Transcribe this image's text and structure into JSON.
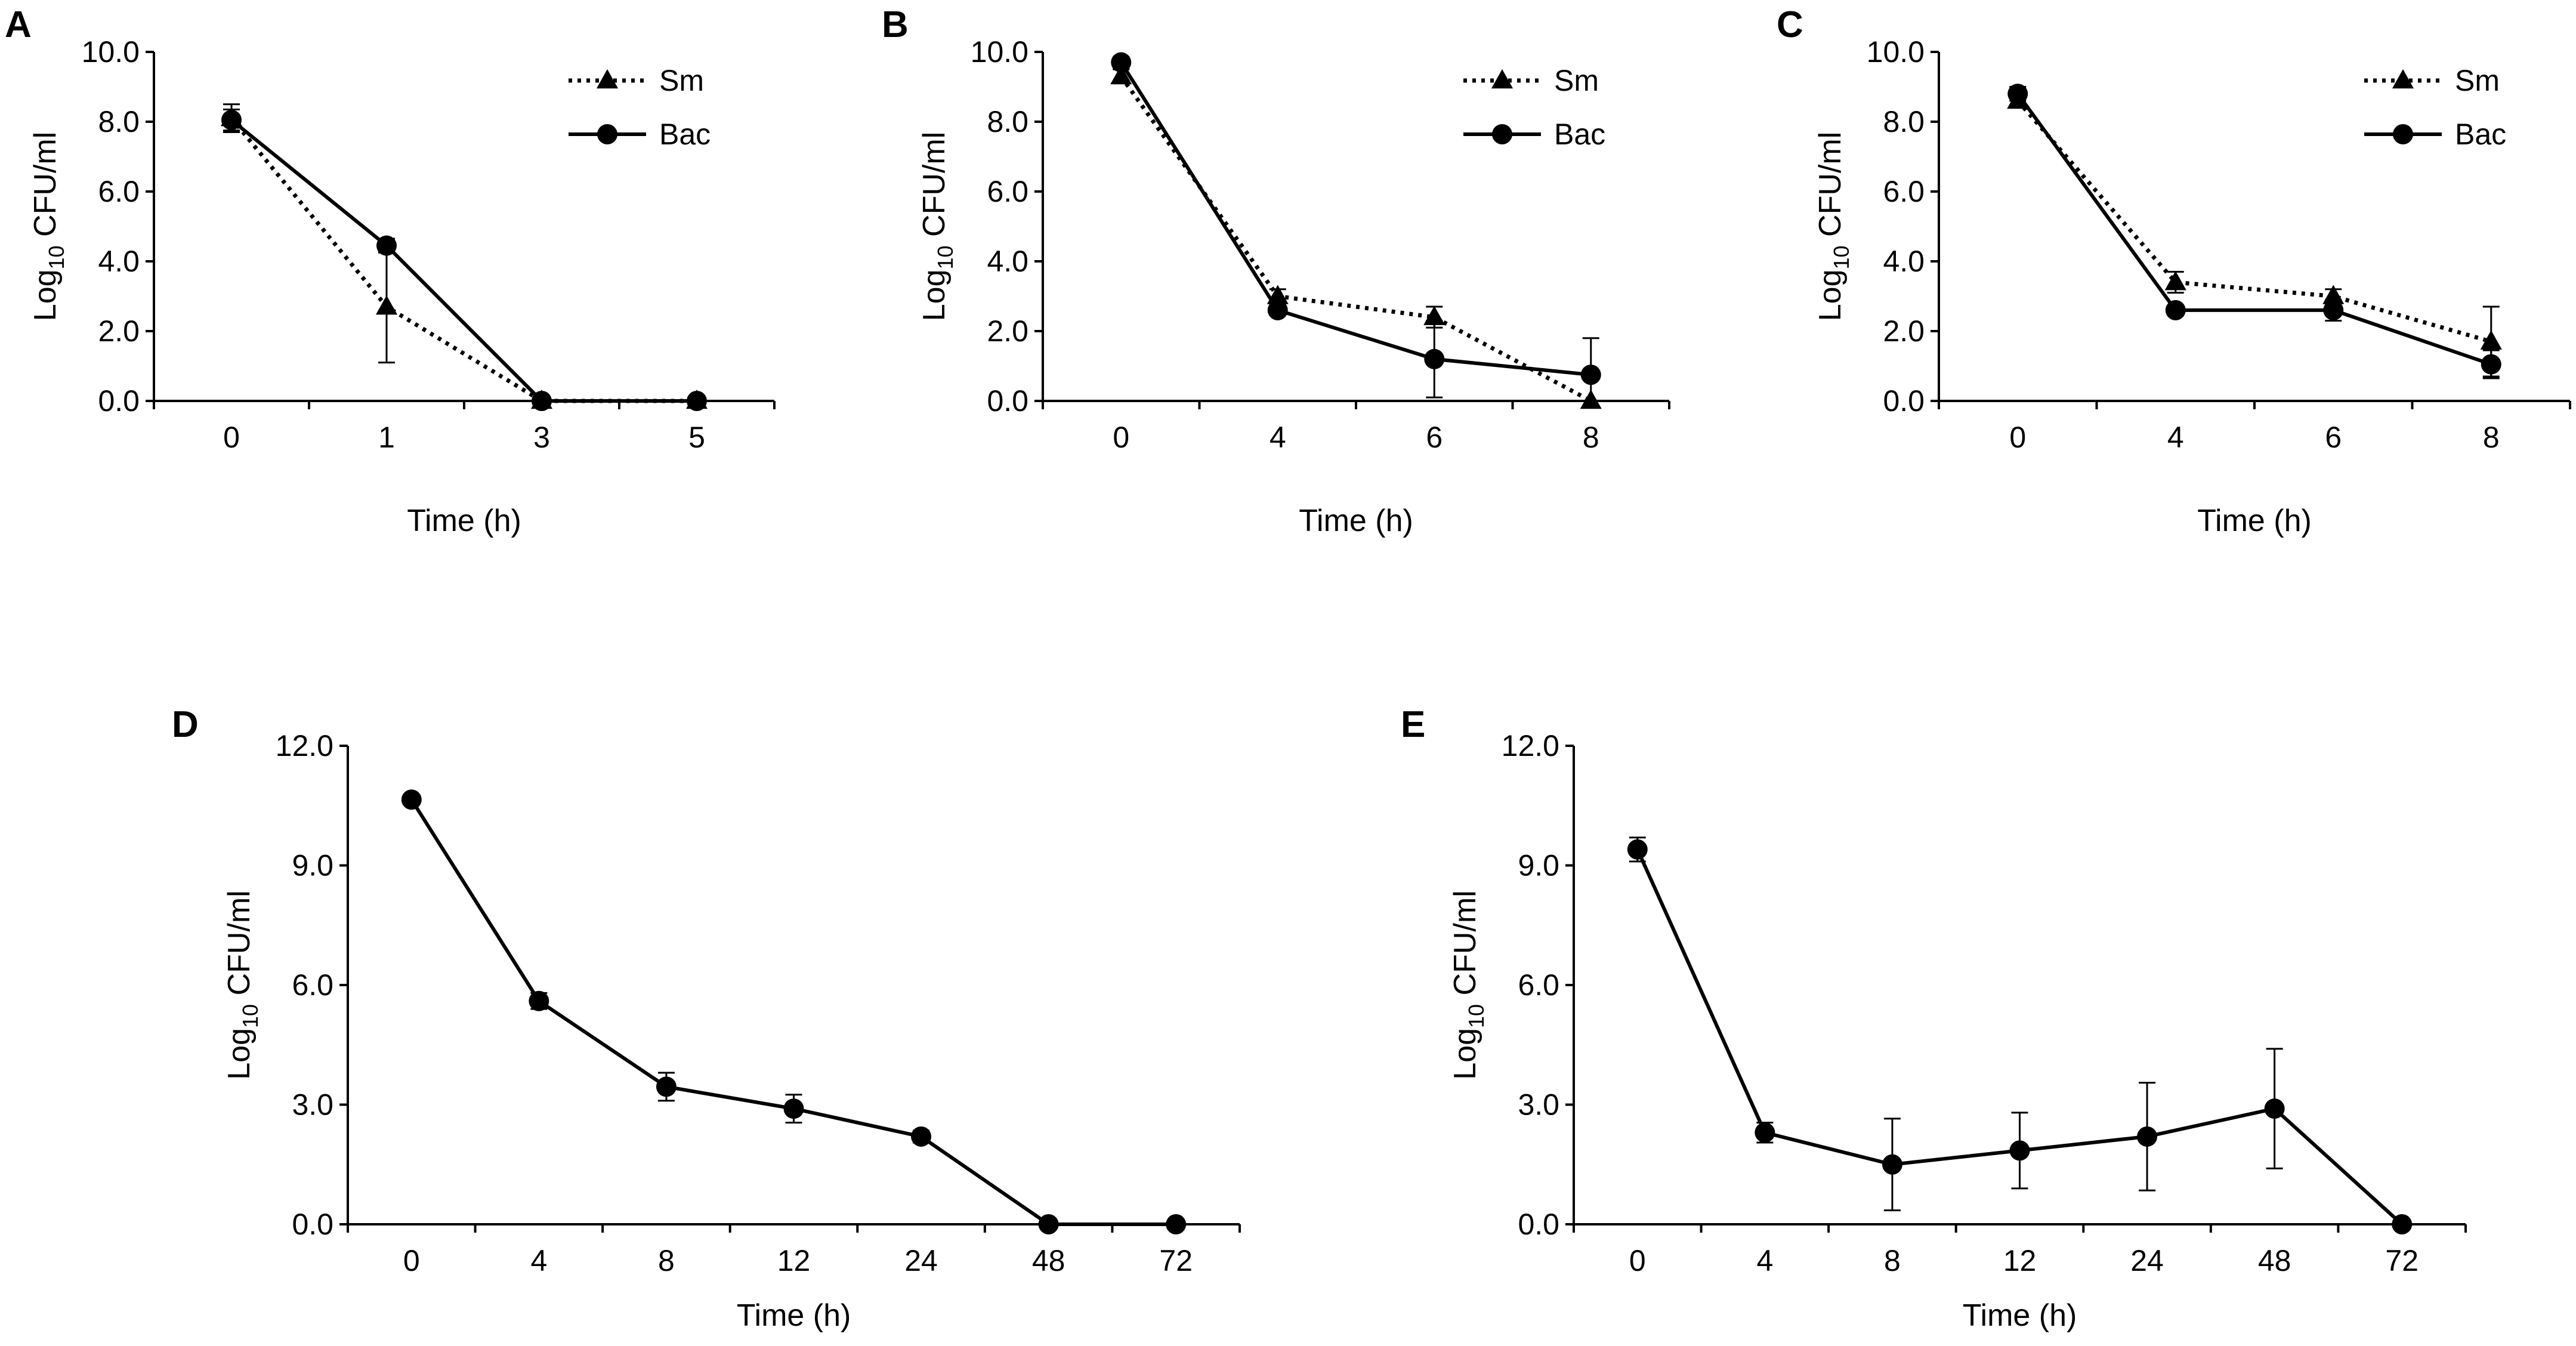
{
  "figure": {
    "panels": [
      "A",
      "B",
      "C",
      "D",
      "E"
    ]
  },
  "chart_data": [
    {
      "panel": "A",
      "type": "line",
      "xlabel": "Time (h)",
      "ylabel_main": "Log",
      "ylabel_sub": "10",
      "ylabel_rest": " CFU/ml",
      "categories": [
        "0",
        "1",
        "3",
        "5"
      ],
      "ylim": [
        0,
        10
      ],
      "yticks": [
        "0.0",
        "2.0",
        "4.0",
        "6.0",
        "8.0",
        "10.0"
      ],
      "legend": "top-right",
      "series": [
        {
          "name": "Sm",
          "style": "dotted",
          "marker": "triangle",
          "values": [
            8.1,
            2.7,
            0.0,
            0.0
          ],
          "errors": [
            0.4,
            1.6,
            0.0,
            0.0
          ]
        },
        {
          "name": "Bac",
          "style": "solid",
          "marker": "circle",
          "values": [
            8.05,
            4.45,
            0.0,
            0.0
          ],
          "errors": [
            0.3,
            0.2,
            0.0,
            0.0
          ]
        }
      ]
    },
    {
      "panel": "B",
      "type": "line",
      "xlabel": "Time (h)",
      "ylabel_main": "Log",
      "ylabel_sub": "10",
      "ylabel_rest": " CFU/ml",
      "categories": [
        "0",
        "4",
        "6",
        "8"
      ],
      "ylim": [
        0,
        10
      ],
      "yticks": [
        "0.0",
        "2.0",
        "4.0",
        "6.0",
        "8.0",
        "10.0"
      ],
      "legend": "top-right",
      "series": [
        {
          "name": "Sm",
          "style": "dotted",
          "marker": "triangle",
          "values": [
            9.3,
            3.0,
            2.4,
            0.0
          ],
          "errors": [
            0.2,
            0.2,
            0.3,
            0.0
          ]
        },
        {
          "name": "Bac",
          "style": "solid",
          "marker": "circle",
          "values": [
            9.7,
            2.6,
            1.2,
            0.75
          ],
          "errors": [
            0.15,
            0.15,
            1.1,
            1.05
          ]
        }
      ]
    },
    {
      "panel": "C",
      "type": "line",
      "xlabel": "Time (h)",
      "ylabel_main": "Log",
      "ylabel_sub": "10",
      "ylabel_rest": " CFU/ml",
      "categories": [
        "0",
        "4",
        "6",
        "8"
      ],
      "ylim": [
        0,
        10
      ],
      "yticks": [
        "0.0",
        "2.0",
        "4.0",
        "6.0",
        "8.0",
        "10.0"
      ],
      "legend": "top-right",
      "series": [
        {
          "name": "Sm",
          "style": "dotted",
          "marker": "triangle",
          "values": [
            8.6,
            3.4,
            3.0,
            1.7
          ],
          "errors": [
            0.2,
            0.3,
            0.2,
            1.0
          ]
        },
        {
          "name": "Bac",
          "style": "solid",
          "marker": "circle",
          "values": [
            8.8,
            2.6,
            2.6,
            1.05
          ],
          "errors": [
            0.2,
            0.1,
            0.3,
            0.4
          ]
        }
      ]
    },
    {
      "panel": "D",
      "type": "line",
      "xlabel": "Time (h)",
      "ylabel_main": "Log",
      "ylabel_sub": "10",
      "ylabel_rest": " CFU/ml",
      "categories": [
        "0",
        "4",
        "8",
        "12",
        "24",
        "48",
        "72"
      ],
      "ylim": [
        0,
        12
      ],
      "yticks": [
        "0.0",
        "3.0",
        "6.0",
        "9.0",
        "12.0"
      ],
      "series": [
        {
          "name": "",
          "style": "solid",
          "marker": "circle",
          "values": [
            10.65,
            5.6,
            3.45,
            2.9,
            2.2,
            0.0,
            0.0
          ],
          "errors": [
            0.1,
            0.2,
            0.35,
            0.35,
            0.15,
            0.0,
            0.0
          ]
        }
      ]
    },
    {
      "panel": "E",
      "type": "line",
      "xlabel": "Time (h)",
      "ylabel_main": "Log",
      "ylabel_sub": "10",
      "ylabel_rest": " CFU/ml",
      "categories": [
        "0",
        "4",
        "8",
        "12",
        "24",
        "48",
        "72"
      ],
      "ylim": [
        0,
        12
      ],
      "yticks": [
        "0.0",
        "3.0",
        "6.0",
        "9.0",
        "12.0"
      ],
      "series": [
        {
          "name": "",
          "style": "solid",
          "marker": "circle",
          "values": [
            9.4,
            2.3,
            1.5,
            1.85,
            2.2,
            2.9,
            0.0
          ],
          "errors": [
            0.3,
            0.25,
            1.15,
            0.95,
            1.35,
            1.5,
            0.0
          ]
        }
      ]
    }
  ]
}
